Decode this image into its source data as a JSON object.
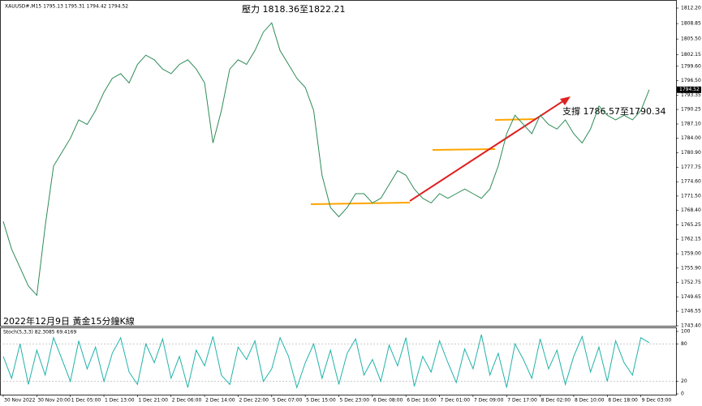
{
  "chart_data": [
    {
      "type": "line",
      "title": "XAUUSD#,M15  1795.13 1795.31 1794.42 1794.52",
      "color": "#2e8b57",
      "values": [
        1766,
        1760,
        1756,
        1752,
        1750,
        1765,
        1778,
        1781,
        1784,
        1788,
        1787,
        1790,
        1794,
        1797,
        1798,
        1796,
        1800,
        1802,
        1801,
        1799,
        1798,
        1800,
        1801,
        1799,
        1796,
        1783,
        1790,
        1799,
        1801,
        1800,
        1803,
        1807,
        1809,
        1803,
        1800,
        1797,
        1795,
        1790,
        1776,
        1769,
        1767,
        1769,
        1772,
        1772,
        1770,
        1771,
        1774,
        1777,
        1776,
        1773,
        1771,
        1770,
        1772,
        1771,
        1772,
        1773,
        1772,
        1771,
        1773,
        1778,
        1785,
        1789,
        1787,
        1785,
        1789,
        1787,
        1786,
        1788,
        1785,
        1783,
        1786,
        1791,
        1789,
        1788,
        1789,
        1788,
        1790,
        1794.52
      ],
      "ylim": [
        1743.4,
        1812.2
      ],
      "yticks": [
        {
          "value": 1812.2,
          "label": "1812.20"
        },
        {
          "value": 1808.85,
          "label": "1808.85"
        },
        {
          "value": 1805.5,
          "label": "1805.50"
        },
        {
          "value": 1802.15,
          "label": "1802.15"
        },
        {
          "value": 1799.6,
          "label": "1799.60"
        },
        {
          "value": 1796.5,
          "label": "1796.50"
        },
        {
          "value": 1793.35,
          "label": "1793.35"
        },
        {
          "value": 1790.25,
          "label": "1790.25"
        },
        {
          "value": 1787.1,
          "label": "1787.10"
        },
        {
          "value": 1784,
          "label": "1784.00"
        },
        {
          "value": 1780.9,
          "label": "1780.90"
        },
        {
          "value": 1777.75,
          "label": "1777.75"
        },
        {
          "value": 1774.6,
          "label": "1774.60"
        },
        {
          "value": 1771.5,
          "label": "1771.50"
        },
        {
          "value": 1768.4,
          "label": "1768.40"
        },
        {
          "value": 1765.25,
          "label": "1765.25"
        },
        {
          "value": 1762.15,
          "label": "1762.15"
        },
        {
          "value": 1759,
          "label": "1759.00"
        },
        {
          "value": 1755.9,
          "label": "1755.90"
        },
        {
          "value": 1752.75,
          "label": "1752.75"
        },
        {
          "value": 1749.65,
          "label": "1749.65"
        },
        {
          "value": 1746.55,
          "label": "1746.55"
        },
        {
          "value": 1743.4,
          "label": "1743.40"
        }
      ],
      "xlim": [
        0,
        80
      ],
      "xticks": [
        {
          "value": 0,
          "label": "30 Nov 2022"
        },
        {
          "value": 4,
          "label": "30 Nov 20:00"
        },
        {
          "value": 8,
          "label": "1 Dec 05:00"
        },
        {
          "value": 12,
          "label": "1 Dec 13:00"
        },
        {
          "value": 16,
          "label": "1 Dec 21:00"
        },
        {
          "value": 20,
          "label": "2 Dec 06:00"
        },
        {
          "value": 24,
          "label": "2 Dec 14:00"
        },
        {
          "value": 28,
          "label": "2 Dec 22:00"
        },
        {
          "value": 32,
          "label": "5 Dec 07:00"
        },
        {
          "value": 36,
          "label": "5 Dec 15:00"
        },
        {
          "value": 40,
          "label": "5 Dec 23:00"
        },
        {
          "value": 44,
          "label": "6 Dec 08:00"
        },
        {
          "value": 48,
          "label": "6 Dec 16:00"
        },
        {
          "value": 52,
          "label": "7 Dec 01:00"
        },
        {
          "value": 56,
          "label": "7 Dec 09:00"
        },
        {
          "value": 60,
          "label": "7 Dec 17:00"
        },
        {
          "value": 64,
          "label": "8 Dec 02:00"
        },
        {
          "value": 68,
          "label": "8 Dec 10:00"
        },
        {
          "value": 72,
          "label": "8 Dec 18:00"
        },
        {
          "value": 76,
          "label": "9 Dec 03:00"
        }
      ],
      "annotations": [
        "壓力 1818.36至1822.21",
        "支撐 1786.57至1790.34",
        "2022年12月9日 黃金15分鐘K線"
      ]
    },
    {
      "type": "line",
      "title": "Stoch(5,3,3) 82.3085 69.4169",
      "color": "#20b2aa",
      "values": [
        60,
        25,
        80,
        15,
        70,
        30,
        90,
        55,
        20,
        85,
        40,
        75,
        20,
        65,
        90,
        35,
        15,
        80,
        50,
        88,
        25,
        60,
        10,
        70,
        45,
        92,
        30,
        15,
        75,
        55,
        85,
        20,
        40,
        90,
        60,
        10,
        50,
        80,
        25,
        70,
        15,
        65,
        88,
        30,
        55,
        20,
        78,
        45,
        90,
        12,
        60,
        35,
        85,
        50,
        18,
        72,
        40,
        95,
        30,
        65,
        10,
        80,
        55,
        25,
        88,
        40,
        70,
        15,
        60,
        92,
        35,
        75,
        20,
        85,
        50,
        30,
        90,
        82
      ],
      "ylim": [
        0,
        100
      ],
      "yticks": [
        0,
        20,
        80,
        100
      ]
    }
  ]
}
